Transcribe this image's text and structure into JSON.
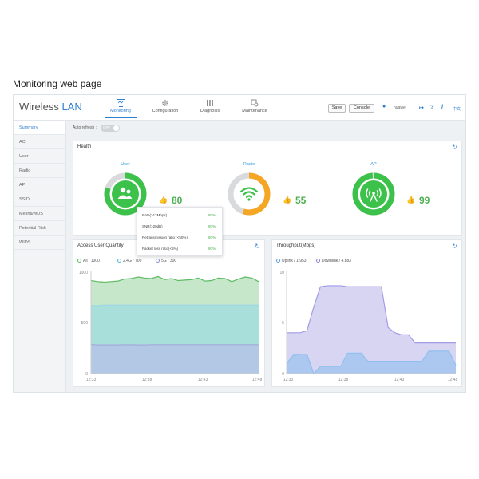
{
  "caption": "Monitoring web page",
  "header": {
    "brand_main": "Wireless ",
    "brand_accent": "LAN",
    "nav": [
      {
        "label": "Monitoring",
        "icon": "monitor-icon",
        "active": true
      },
      {
        "label": "Configuration",
        "icon": "gear-icon"
      },
      {
        "label": "Diagnosis",
        "icon": "bars-icon"
      },
      {
        "label": "Maintenance",
        "icon": "tools-icon"
      }
    ],
    "save_label": "Save",
    "console_label": "Console",
    "user_name": "huawei",
    "help_label": "?",
    "info_label": "i",
    "lang_label": "中文"
  },
  "sidebar": {
    "items": [
      "Summary",
      "AC",
      "User",
      "Radio",
      "AP",
      "SSID",
      "Mesh&WDS",
      "Potential Risk",
      "WIDS"
    ]
  },
  "auto_refresh": {
    "label": "Auto refresh :",
    "state": "OFF"
  },
  "health": {
    "title": "Health",
    "gauges": [
      {
        "label": "User",
        "score": "80",
        "icon": "users-icon",
        "ring_color": "#3cc24a",
        "fill": 0.8
      },
      {
        "label": "Radio",
        "score": "55",
        "icon": "wifi-icon",
        "ring_color": "#f5a623",
        "fill": 0.55
      },
      {
        "label": "AP",
        "score": "99",
        "icon": "ap-icon",
        "ring_color": "#3cc24a",
        "fill": 0.99
      }
    ],
    "popup": [
      {
        "label": "Rate(>12Mbps)",
        "pct": "80%"
      },
      {
        "label": "SNR(>20dB)",
        "pct": "80%"
      },
      {
        "label": "Retransmission ratio (<50%)",
        "pct": "80%"
      },
      {
        "label": "Packet loss ratio(<5%)",
        "pct": "80%"
      }
    ]
  },
  "access_chart": {
    "title": "Access User Quantity",
    "legend": [
      "All / 1000",
      "2.4G / 700",
      "5G / 300"
    ],
    "colors": {
      "all": "#5dbb63",
      "g24": "#8fd8e8",
      "g5": "#b8bde8"
    },
    "y_ticks": [
      "1000",
      "500",
      "0"
    ],
    "x_ticks": [
      "12:33",
      "12:38",
      "12:43",
      "12:48"
    ],
    "chart_data": {
      "type": "area",
      "ylim": [
        0,
        1000
      ],
      "series": [
        {
          "name": "All / 1000",
          "values": [
            910,
            900,
            895,
            900,
            905,
            925,
            930,
            945,
            935,
            930,
            950,
            920,
            930,
            910,
            915,
            920,
            935,
            905,
            910,
            935,
            930,
            900,
            925,
            945,
            935,
            900
          ]
        },
        {
          "name": "2.4G / 700",
          "values": [
            665,
            665,
            670,
            670,
            670,
            670,
            670,
            670,
            670,
            670,
            670,
            670,
            670,
            670,
            670,
            670,
            670,
            670,
            670,
            670,
            670,
            670,
            670,
            670,
            670,
            670
          ]
        },
        {
          "name": "5G / 300",
          "values": [
            285,
            280,
            280,
            280,
            280,
            282,
            282,
            280,
            280,
            282,
            282,
            282,
            282,
            282,
            282,
            282,
            282,
            282,
            282,
            282,
            282,
            282,
            282,
            282,
            282,
            282
          ]
        }
      ]
    }
  },
  "throughput_chart": {
    "title": "Throughput(Mbps)",
    "legend": [
      "Uplink / 1.953",
      "Downlink / 4.883"
    ],
    "colors": {
      "up": "#8fc0ee",
      "down": "#b8b3ea"
    },
    "y_ticks": [
      "10",
      "5",
      "0"
    ],
    "x_ticks": [
      "12:33",
      "12:38",
      "12:43",
      "12:48"
    ],
    "chart_data": {
      "type": "area",
      "ylim": [
        0,
        10
      ],
      "series": [
        {
          "name": "Downlink / 4.883",
          "values": [
            4.0,
            4.0,
            4.0,
            4.2,
            6.5,
            8.5,
            8.6,
            8.6,
            8.6,
            8.5,
            8.5,
            8.5,
            8.5,
            8.5,
            8.5,
            4.5,
            4.0,
            3.8,
            3.8,
            3.0,
            3.0,
            3.0,
            3.0,
            3.0,
            3.0,
            3.0
          ]
        },
        {
          "name": "Uplink / 1.953",
          "values": [
            1.0,
            1.8,
            1.9,
            1.9,
            0.0,
            0.7,
            0.7,
            0.7,
            0.7,
            2.0,
            2.0,
            2.0,
            1.2,
            1.2,
            1.2,
            1.2,
            1.2,
            1.2,
            1.2,
            1.2,
            1.2,
            2.2,
            2.2,
            2.2,
            2.2,
            0.8
          ]
        }
      ]
    }
  }
}
